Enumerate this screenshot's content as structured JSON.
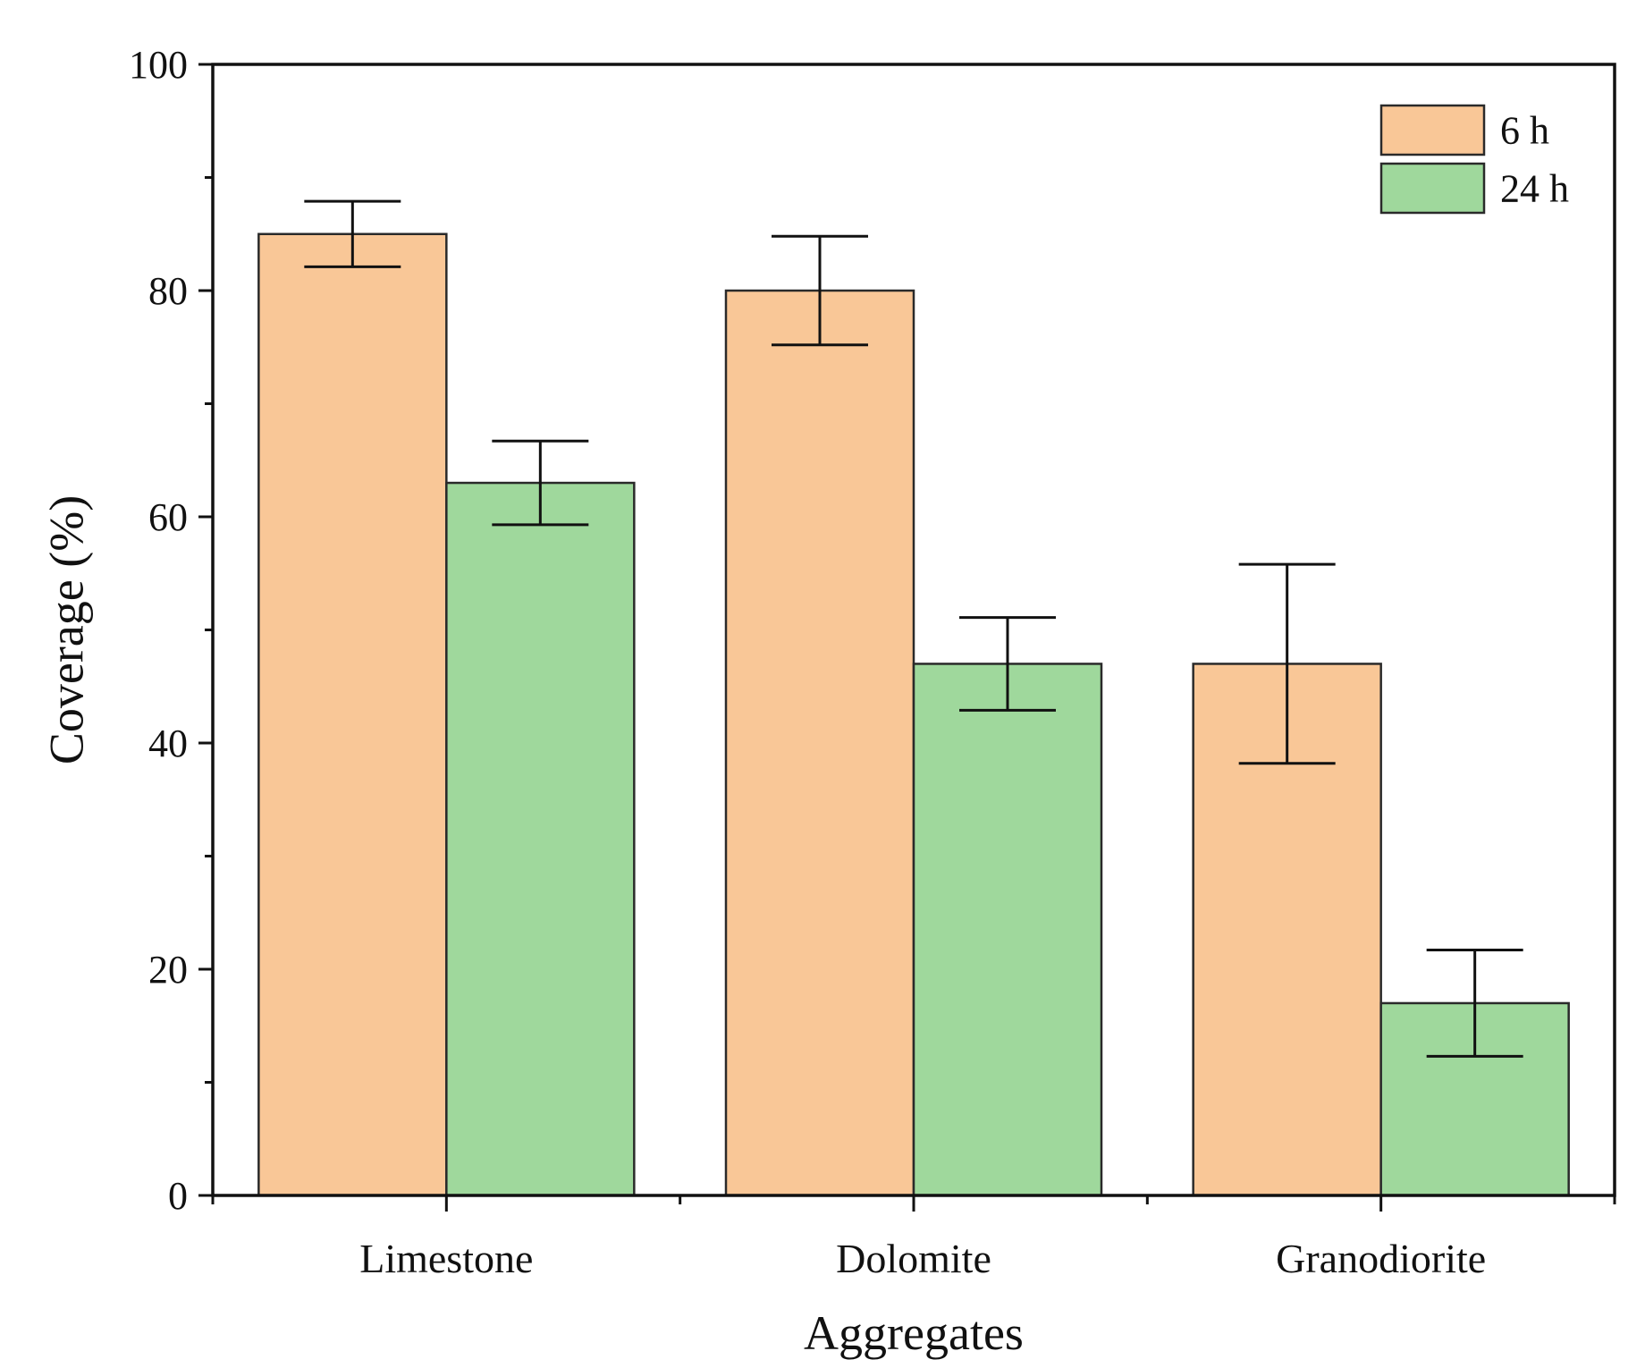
{
  "colors": {
    "series_6h": "#f9c797",
    "series_24h": "#9fd89c",
    "axis": "#111111",
    "bar_outline": "#2a2a2a"
  },
  "chart_data": {
    "type": "bar",
    "title": "",
    "xlabel": "Aggregates",
    "ylabel": "Coverage (%)",
    "ylim": [
      0,
      100
    ],
    "yticks": [
      0,
      20,
      40,
      60,
      80,
      100
    ],
    "y_minor_step": 10,
    "categories": [
      "Limestone",
      "Dolomite",
      "Granodiorite"
    ],
    "legend_position": "top-right",
    "error_bars": true,
    "series": [
      {
        "name": "6 h",
        "color": "#f9c797",
        "values": [
          85,
          80,
          47
        ],
        "errors": [
          2.9,
          4.8,
          8.8
        ]
      },
      {
        "name": "24 h",
        "color": "#9fd89c",
        "values": [
          63,
          47,
          17
        ],
        "errors": [
          3.7,
          4.1,
          4.7
        ]
      }
    ]
  }
}
